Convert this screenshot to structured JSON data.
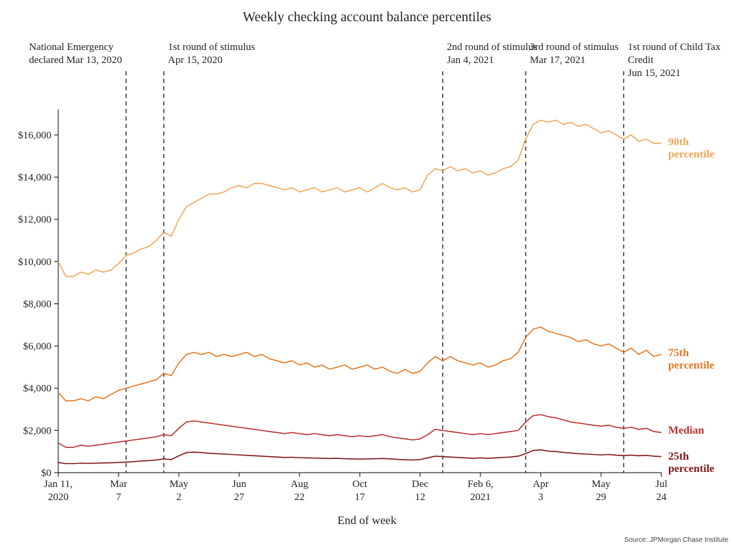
{
  "title": "Weekly checking account balance percentiles",
  "x_axis_title": "End of week",
  "source": "Source: JPMorgan Chase Institute",
  "background_color": "#ffffff",
  "axis_color": "#000000",
  "text_color": "#222222",
  "title_fontsize": 20,
  "label_fontsize": 15,
  "series_label_fontsize": 16,
  "x_domain": [
    0,
    80
  ],
  "y_domain": [
    0,
    17200
  ],
  "y_ticks": [
    {
      "v": 0,
      "label": "$0"
    },
    {
      "v": 2000,
      "label": "$2,000"
    },
    {
      "v": 4000,
      "label": "$4,000"
    },
    {
      "v": 6000,
      "label": "$6,000"
    },
    {
      "v": 8000,
      "label": "$8,000"
    },
    {
      "v": 10000,
      "label": "$10,000"
    },
    {
      "v": 12000,
      "label": "$12,000"
    },
    {
      "v": 14000,
      "label": "$14,000"
    },
    {
      "v": 16000,
      "label": "$16,000"
    }
  ],
  "x_ticks": [
    {
      "i": 0,
      "line1": "Jan 11,",
      "line2": "2020"
    },
    {
      "i": 8,
      "line1": "Mar",
      "line2": "7"
    },
    {
      "i": 16,
      "line1": "May",
      "line2": "2"
    },
    {
      "i": 24,
      "line1": "Jun",
      "line2": "27"
    },
    {
      "i": 32,
      "line1": "Aug",
      "line2": "22"
    },
    {
      "i": 40,
      "line1": "Oct",
      "line2": "17"
    },
    {
      "i": 48,
      "line1": "Dec",
      "line2": "12"
    },
    {
      "i": 56,
      "line1": "Feb 6,",
      "line2": "2021"
    },
    {
      "i": 64,
      "line1": "Apr",
      "line2": "3"
    },
    {
      "i": 72,
      "line1": "May",
      "line2": "29"
    },
    {
      "i": 80,
      "line1": "Jul",
      "line2": "24"
    }
  ],
  "annotations": [
    {
      "i": 9,
      "line1": "National Emergency",
      "line2": "declared Mar 13, 2020",
      "align": "right"
    },
    {
      "i": 14,
      "line1": "1st round of stimulus",
      "line2": "Apr 15, 2020",
      "align": "left"
    },
    {
      "i": 51,
      "line1": "2nd round of stimulus",
      "line2": "Jan 4, 2021",
      "align": "left"
    },
    {
      "i": 62,
      "line1": "3rd round of stimulus",
      "line2": "Mar 17, 2021",
      "align": "left"
    },
    {
      "i": 75,
      "line1": "1st round of Child Tax Credit",
      "line2": "Jun 15, 2021",
      "align": "left"
    }
  ],
  "series": [
    {
      "name": "90th percentile",
      "color": "#f2a557",
      "width": 1.6,
      "label_y": 15600,
      "values": [
        10000,
        9300,
        9300,
        9500,
        9400,
        9600,
        9500,
        9600,
        9900,
        10300,
        10400,
        10600,
        10700,
        11000,
        11400,
        11200,
        12000,
        12600,
        12800,
        13000,
        13200,
        13200,
        13300,
        13500,
        13600,
        13500,
        13700,
        13700,
        13600,
        13500,
        13400,
        13500,
        13300,
        13400,
        13500,
        13300,
        13400,
        13500,
        13300,
        13400,
        13500,
        13300,
        13500,
        13700,
        13500,
        13400,
        13500,
        13300,
        13400,
        14100,
        14400,
        14300,
        14500,
        14300,
        14400,
        14200,
        14300,
        14100,
        14200,
        14400,
        14500,
        14800,
        15800,
        16500,
        16700,
        16600,
        16700,
        16500,
        16600,
        16400,
        16500,
        16300,
        16100,
        16200,
        16000,
        15800,
        16000,
        15700,
        15800,
        15600,
        15600
      ]
    },
    {
      "name": "75th percentile",
      "color": "#e67722",
      "width": 1.6,
      "label_y": 5600,
      "values": [
        3800,
        3400,
        3400,
        3500,
        3400,
        3600,
        3500,
        3700,
        3900,
        4000,
        4100,
        4200,
        4300,
        4400,
        4700,
        4600,
        5200,
        5600,
        5700,
        5600,
        5700,
        5500,
        5600,
        5500,
        5600,
        5700,
        5500,
        5600,
        5400,
        5300,
        5200,
        5300,
        5100,
        5200,
        5000,
        5100,
        4900,
        5000,
        5100,
        4900,
        5000,
        5100,
        4900,
        5000,
        4800,
        4700,
        4900,
        4700,
        4800,
        5200,
        5500,
        5300,
        5500,
        5300,
        5200,
        5100,
        5200,
        5000,
        5100,
        5300,
        5400,
        5700,
        6400,
        6800,
        6900,
        6700,
        6600,
        6500,
        6400,
        6200,
        6300,
        6100,
        6000,
        6100,
        5900,
        5700,
        5900,
        5600,
        5800,
        5500,
        5600
      ]
    },
    {
      "name": "Median",
      "color": "#ba3030",
      "width": 1.6,
      "label_y": 1950,
      "values": [
        1400,
        1200,
        1200,
        1300,
        1250,
        1300,
        1350,
        1400,
        1450,
        1500,
        1550,
        1600,
        1650,
        1700,
        1800,
        1750,
        2100,
        2400,
        2450,
        2400,
        2350,
        2300,
        2250,
        2200,
        2150,
        2100,
        2050,
        2000,
        1950,
        1900,
        1850,
        1900,
        1850,
        1800,
        1850,
        1800,
        1750,
        1800,
        1750,
        1700,
        1750,
        1700,
        1750,
        1800,
        1700,
        1650,
        1600,
        1550,
        1600,
        1800,
        2050,
        2000,
        1950,
        1900,
        1850,
        1800,
        1850,
        1800,
        1850,
        1900,
        1950,
        2000,
        2400,
        2700,
        2750,
        2650,
        2600,
        2500,
        2400,
        2350,
        2300,
        2250,
        2200,
        2250,
        2150,
        2100,
        2150,
        2050,
        2100,
        1950,
        1900
      ]
    },
    {
      "name": "25th percentile",
      "color": "#801616",
      "width": 1.6,
      "label_y": 700,
      "values": [
        480,
        430,
        430,
        450,
        440,
        450,
        460,
        470,
        480,
        500,
        520,
        550,
        570,
        600,
        650,
        620,
        800,
        950,
        970,
        950,
        920,
        900,
        880,
        860,
        840,
        820,
        800,
        780,
        760,
        740,
        720,
        730,
        710,
        700,
        690,
        680,
        670,
        680,
        660,
        650,
        640,
        650,
        660,
        670,
        650,
        630,
        610,
        600,
        620,
        700,
        780,
        760,
        740,
        720,
        700,
        680,
        700,
        680,
        700,
        720,
        740,
        780,
        900,
        1050,
        1080,
        1020,
        1000,
        960,
        930,
        900,
        880,
        860,
        840,
        860,
        830,
        810,
        830,
        800,
        820,
        780,
        760
      ]
    }
  ],
  "series_labels": {
    "p90": "90th percentile",
    "p75": "75th percentile",
    "median": "Median",
    "p25": "25th percentile"
  }
}
